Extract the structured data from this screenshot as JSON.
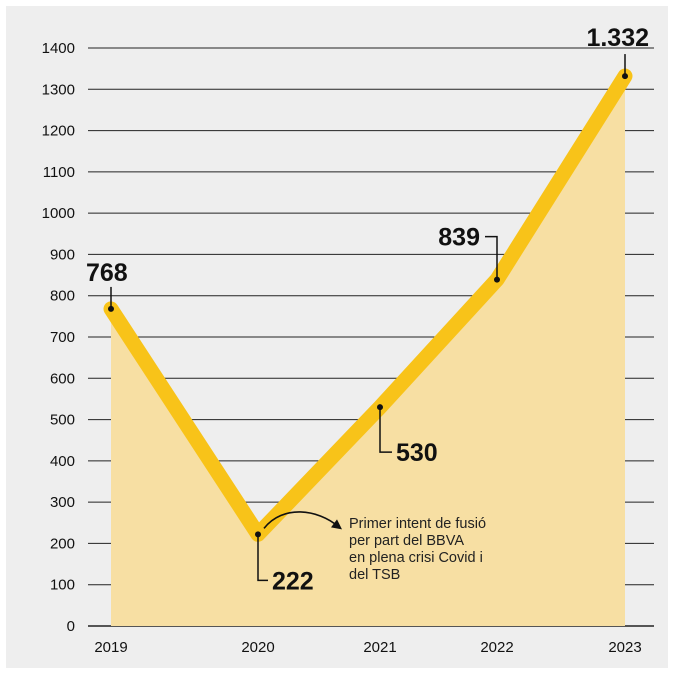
{
  "chart_data": {
    "type": "area",
    "categories": [
      "2019",
      "2020",
      "2021",
      "2022",
      "2023"
    ],
    "values": [
      768,
      222,
      530,
      839,
      1332
    ],
    "data_labels": [
      "768",
      "222",
      "530",
      "839",
      "1.332"
    ],
    "yticks": [
      "0",
      "100",
      "200",
      "300",
      "400",
      "500",
      "600",
      "700",
      "800",
      "900",
      "1000",
      "1100",
      "1200",
      "1300",
      "1400"
    ],
    "ylim": [
      0,
      1400
    ],
    "grid": true,
    "legend": "none",
    "annotation": {
      "lines": [
        "Primer intent de fusió",
        "per part del BBVA",
        "en plena crisi Covid i",
        "del TSB"
      ]
    },
    "colors": {
      "line": "#f8c319",
      "area": "#f7dfa3",
      "grid": "#222222",
      "background": "#eeeeee",
      "text": "#111111"
    }
  }
}
